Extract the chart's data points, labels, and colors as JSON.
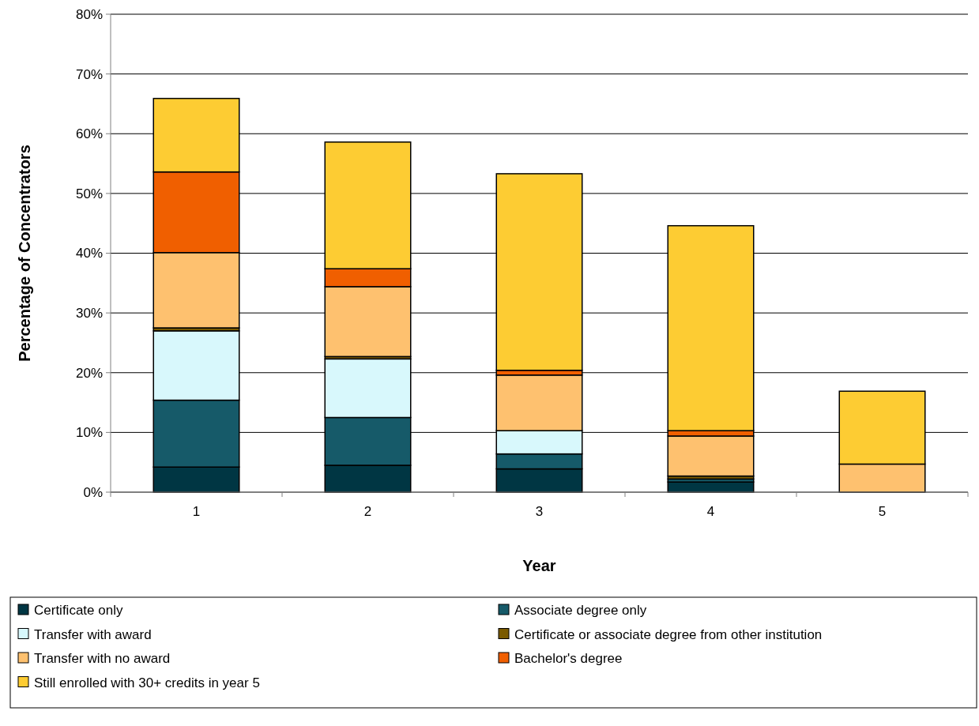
{
  "chart_data": {
    "type": "bar",
    "stacked": true,
    "xlabel": "Year",
    "ylabel": "Percentage of Concentrators",
    "categories": [
      "1",
      "2",
      "3",
      "4",
      "5"
    ],
    "ylim": [
      0,
      80
    ],
    "yticks": [
      {
        "value": 0,
        "label": "0%"
      },
      {
        "value": 10,
        "label": "10%"
      },
      {
        "value": 20,
        "label": "20%"
      },
      {
        "value": 30,
        "label": "30%"
      },
      {
        "value": 40,
        "label": "40%"
      },
      {
        "value": 50,
        "label": "50%"
      },
      {
        "value": 60,
        "label": "60%"
      },
      {
        "value": 70,
        "label": "70%"
      },
      {
        "value": 80,
        "label": "80%"
      }
    ],
    "grid": "y",
    "legend": "bottom",
    "series": [
      {
        "name": "Certificate only",
        "color": "#003643",
        "values": [
          4.2,
          4.5,
          3.9,
          1.7,
          0
        ]
      },
      {
        "name": "Associate degree only",
        "color": "#165a69",
        "values": [
          11.2,
          8.0,
          2.5,
          0.5,
          0
        ]
      },
      {
        "name": "Transfer with award",
        "color": "#d8f8fc",
        "values": [
          11.6,
          9.8,
          3.9,
          0,
          0
        ]
      },
      {
        "name": "Certificate or associate degree from other institution",
        "color": "#7a5a00",
        "values": [
          0.5,
          0.4,
          0,
          0.5,
          0
        ]
      },
      {
        "name": "Transfer with no award",
        "color": "#fec16f",
        "values": [
          12.6,
          11.7,
          9.3,
          6.7,
          4.7
        ]
      },
      {
        "name": "Bachelor's degree",
        "color": "#f05f00",
        "values": [
          13.5,
          3.0,
          0.8,
          0.9,
          0
        ]
      },
      {
        "name": "Still enrolled with 30+ credits in year 5",
        "color": "#fdcc33",
        "values": [
          12.3,
          21.2,
          32.9,
          34.3,
          12.2
        ]
      }
    ]
  }
}
